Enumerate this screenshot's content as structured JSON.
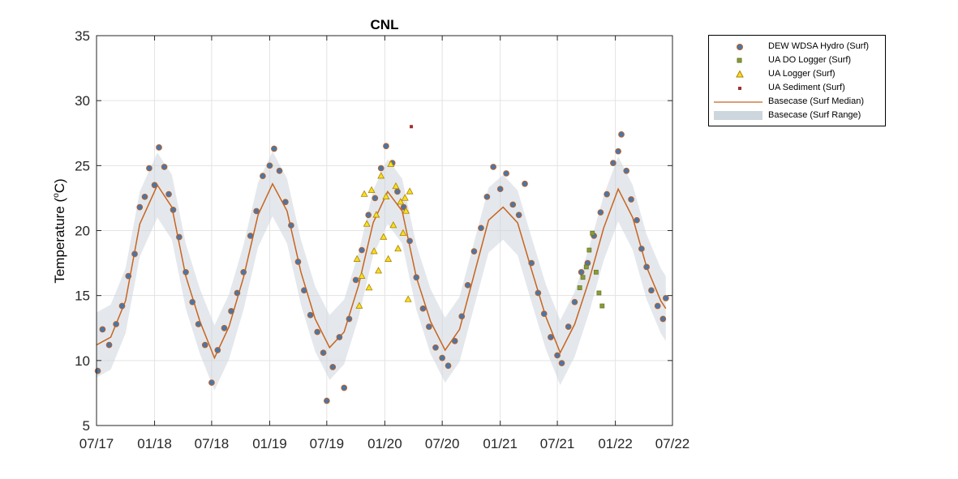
{
  "chart_data": {
    "type": "scatter",
    "title": "CNL",
    "xlabel": "",
    "ylabel": "Temperature (°C)",
    "ylabel_main": "Temperature (",
    "ylabel_sup": "o",
    "ylabel_unit": "C)",
    "ylim": [
      5,
      35
    ],
    "yticks": [
      5,
      10,
      15,
      20,
      25,
      30,
      35
    ],
    "xlim": [
      "2017-07-01",
      "2022-07-01"
    ],
    "xticks": [
      {
        "date": "2017-07-01",
        "label": "07/17"
      },
      {
        "date": "2018-01-01",
        "label": "01/18"
      },
      {
        "date": "2018-07-01",
        "label": "07/18"
      },
      {
        "date": "2019-01-01",
        "label": "01/19"
      },
      {
        "date": "2019-07-01",
        "label": "07/19"
      },
      {
        "date": "2020-01-01",
        "label": "01/20"
      },
      {
        "date": "2020-07-01",
        "label": "07/20"
      },
      {
        "date": "2021-01-01",
        "label": "01/21"
      },
      {
        "date": "2021-07-01",
        "label": "07/21"
      },
      {
        "date": "2022-01-01",
        "label": "01/22"
      },
      {
        "date": "2022-07-01",
        "label": "07/22"
      }
    ],
    "grid": true,
    "legend_position": "outside-top-right",
    "series": [
      {
        "name": "DEW WDSA Hydro (Surf)",
        "marker": "circle",
        "color": "#4a76a8",
        "edge": "#c06020",
        "points": [
          [
            "2017-07-05",
            9.2
          ],
          [
            "2017-07-20",
            12.4
          ],
          [
            "2017-08-10",
            11.2
          ],
          [
            "2017-09-01",
            12.8
          ],
          [
            "2017-09-20",
            14.2
          ],
          [
            "2017-10-10",
            16.5
          ],
          [
            "2017-10-30",
            18.2
          ],
          [
            "2017-11-15",
            21.8
          ],
          [
            "2017-12-01",
            22.6
          ],
          [
            "2017-12-15",
            24.8
          ],
          [
            "2018-01-01",
            23.5
          ],
          [
            "2018-01-15",
            26.4
          ],
          [
            "2018-02-01",
            24.9
          ],
          [
            "2018-02-15",
            22.8
          ],
          [
            "2018-03-01",
            21.6
          ],
          [
            "2018-03-20",
            19.5
          ],
          [
            "2018-04-10",
            16.8
          ],
          [
            "2018-05-01",
            14.5
          ],
          [
            "2018-05-20",
            12.8
          ],
          [
            "2018-06-10",
            11.2
          ],
          [
            "2018-07-01",
            8.3
          ],
          [
            "2018-07-20",
            10.8
          ],
          [
            "2018-08-10",
            12.5
          ],
          [
            "2018-09-01",
            13.8
          ],
          [
            "2018-09-20",
            15.2
          ],
          [
            "2018-10-10",
            16.8
          ],
          [
            "2018-11-01",
            19.6
          ],
          [
            "2018-11-20",
            21.5
          ],
          [
            "2018-12-10",
            24.2
          ],
          [
            "2019-01-01",
            25.0
          ],
          [
            "2019-01-15",
            26.3
          ],
          [
            "2019-02-01",
            24.6
          ],
          [
            "2019-02-20",
            22.2
          ],
          [
            "2019-03-10",
            20.4
          ],
          [
            "2019-04-01",
            17.6
          ],
          [
            "2019-04-20",
            15.4
          ],
          [
            "2019-05-10",
            13.5
          ],
          [
            "2019-06-01",
            12.2
          ],
          [
            "2019-06-20",
            10.6
          ],
          [
            "2019-07-01",
            6.9
          ],
          [
            "2019-07-20",
            9.5
          ],
          [
            "2019-08-10",
            11.8
          ],
          [
            "2019-08-25",
            7.9
          ],
          [
            "2019-09-10",
            13.2
          ],
          [
            "2019-10-01",
            16.2
          ],
          [
            "2019-10-20",
            18.5
          ],
          [
            "2019-11-10",
            21.2
          ],
          [
            "2019-12-01",
            22.5
          ],
          [
            "2019-12-20",
            24.8
          ],
          [
            "2020-01-05",
            26.5
          ],
          [
            "2020-01-25",
            25.2
          ],
          [
            "2020-02-10",
            23.0
          ],
          [
            "2020-03-01",
            21.8
          ],
          [
            "2020-03-20",
            19.2
          ],
          [
            "2020-04-10",
            16.4
          ],
          [
            "2020-05-01",
            14.0
          ],
          [
            "2020-05-20",
            12.6
          ],
          [
            "2020-06-10",
            11.0
          ],
          [
            "2020-07-01",
            10.2
          ],
          [
            "2020-07-20",
            9.6
          ],
          [
            "2020-08-10",
            11.5
          ],
          [
            "2020-09-01",
            13.4
          ],
          [
            "2020-09-20",
            15.8
          ],
          [
            "2020-10-10",
            18.4
          ],
          [
            "2020-11-01",
            20.2
          ],
          [
            "2020-11-20",
            22.6
          ],
          [
            "2020-12-10",
            24.9
          ],
          [
            "2021-01-01",
            23.2
          ],
          [
            "2021-01-20",
            24.4
          ],
          [
            "2021-02-10",
            22.0
          ],
          [
            "2021-03-01",
            21.2
          ],
          [
            "2021-03-20",
            23.6
          ],
          [
            "2021-04-10",
            17.5
          ],
          [
            "2021-05-01",
            15.2
          ],
          [
            "2021-05-20",
            13.6
          ],
          [
            "2021-06-10",
            11.8
          ],
          [
            "2021-07-01",
            10.4
          ],
          [
            "2021-07-15",
            9.8
          ],
          [
            "2021-08-05",
            12.6
          ],
          [
            "2021-08-25",
            14.5
          ],
          [
            "2021-09-15",
            16.8
          ],
          [
            "2021-10-05",
            17.5
          ],
          [
            "2021-10-25",
            19.6
          ],
          [
            "2021-11-15",
            21.4
          ],
          [
            "2021-12-05",
            22.8
          ],
          [
            "2021-12-25",
            25.2
          ],
          [
            "2022-01-10",
            26.1
          ],
          [
            "2022-01-20",
            27.4
          ],
          [
            "2022-02-05",
            24.6
          ],
          [
            "2022-02-20",
            22.4
          ],
          [
            "2022-03-10",
            20.8
          ],
          [
            "2022-03-25",
            18.6
          ],
          [
            "2022-04-10",
            17.2
          ],
          [
            "2022-04-25",
            15.4
          ],
          [
            "2022-05-15",
            14.2
          ],
          [
            "2022-06-01",
            13.2
          ],
          [
            "2022-06-10",
            14.8
          ]
        ]
      },
      {
        "name": "UA DO Logger (Surf)",
        "marker": "square",
        "color": "#8a9a3a",
        "edge": "#6a7a28",
        "points": [
          [
            "2021-09-10",
            15.6
          ],
          [
            "2021-09-20",
            16.4
          ],
          [
            "2021-10-01",
            17.2
          ],
          [
            "2021-10-10",
            18.5
          ],
          [
            "2021-10-20",
            19.8
          ],
          [
            "2021-11-01",
            16.8
          ],
          [
            "2021-11-10",
            15.2
          ],
          [
            "2021-11-20",
            14.2
          ]
        ]
      },
      {
        "name": "UA Logger (Surf)",
        "marker": "triangle",
        "color": "#f5e020",
        "edge": "#b08000",
        "points": [
          [
            "2019-10-05",
            17.8
          ],
          [
            "2019-10-12",
            14.2
          ],
          [
            "2019-10-20",
            16.5
          ],
          [
            "2019-10-28",
            22.8
          ],
          [
            "2019-11-05",
            20.5
          ],
          [
            "2019-11-12",
            15.6
          ],
          [
            "2019-11-20",
            23.1
          ],
          [
            "2019-11-28",
            18.4
          ],
          [
            "2019-12-05",
            21.2
          ],
          [
            "2019-12-12",
            16.9
          ],
          [
            "2019-12-20",
            24.2
          ],
          [
            "2019-12-28",
            19.5
          ],
          [
            "2020-01-05",
            22.6
          ],
          [
            "2020-01-12",
            17.8
          ],
          [
            "2020-01-20",
            25.1
          ],
          [
            "2020-01-28",
            20.4
          ],
          [
            "2020-02-05",
            23.4
          ],
          [
            "2020-02-12",
            18.6
          ],
          [
            "2020-02-20",
            22.2
          ],
          [
            "2020-02-28",
            19.8
          ],
          [
            "2020-03-08",
            21.5
          ],
          [
            "2020-03-15",
            14.7
          ],
          [
            "2020-03-20",
            23.0
          ],
          [
            "2020-03-05",
            22.5
          ]
        ]
      },
      {
        "name": "UA Sediment (Surf)",
        "marker": "small-square",
        "color": "#a03030",
        "edge": "#a03030",
        "points": [
          [
            "2020-03-25",
            28.0
          ]
        ]
      }
    ],
    "basecase_median": {
      "name": "Basecase (Surf Median)",
      "color": "#c86420",
      "points": [
        [
          "2017-07-01",
          11.2
        ],
        [
          "2017-08-15",
          11.8
        ],
        [
          "2017-10-01",
          14.6
        ],
        [
          "2017-11-15",
          20.5
        ],
        [
          "2018-01-10",
          23.5
        ],
        [
          "2018-02-25",
          21.8
        ],
        [
          "2018-04-10",
          16.5
        ],
        [
          "2018-05-25",
          13.0
        ],
        [
          "2018-07-10",
          10.2
        ],
        [
          "2018-08-25",
          12.6
        ],
        [
          "2018-10-10",
          16.4
        ],
        [
          "2018-11-25",
          21.2
        ],
        [
          "2019-01-10",
          23.6
        ],
        [
          "2019-02-25",
          21.5
        ],
        [
          "2019-04-10",
          16.8
        ],
        [
          "2019-05-25",
          13.2
        ],
        [
          "2019-07-10",
          11.0
        ],
        [
          "2019-08-25",
          12.2
        ],
        [
          "2019-10-10",
          15.8
        ],
        [
          "2019-11-25",
          20.6
        ],
        [
          "2020-01-10",
          23.0
        ],
        [
          "2020-02-25",
          21.5
        ],
        [
          "2020-04-10",
          16.4
        ],
        [
          "2020-05-25",
          13.0
        ],
        [
          "2020-07-10",
          10.8
        ],
        [
          "2020-08-25",
          12.4
        ],
        [
          "2020-10-10",
          16.6
        ],
        [
          "2020-11-25",
          20.8
        ],
        [
          "2021-01-10",
          21.8
        ],
        [
          "2021-02-25",
          20.6
        ],
        [
          "2021-04-10",
          17.0
        ],
        [
          "2021-05-25",
          13.4
        ],
        [
          "2021-07-10",
          10.6
        ],
        [
          "2021-08-25",
          12.8
        ],
        [
          "2021-10-10",
          16.2
        ],
        [
          "2021-11-25",
          20.2
        ],
        [
          "2022-01-10",
          23.2
        ],
        [
          "2022-02-25",
          21.0
        ],
        [
          "2022-04-10",
          17.2
        ],
        [
          "2022-05-25",
          14.6
        ],
        [
          "2022-06-10",
          14.0
        ]
      ]
    },
    "basecase_range": {
      "name": "Basecase (Surf Range)",
      "color": "#cdd6dc",
      "spread": 2.5
    },
    "legend": [
      {
        "label": "DEW WDSA Hydro (Surf)",
        "symbol": "circle",
        "color": "#4a76a8",
        "edge": "#c06020"
      },
      {
        "label": "UA DO Logger (Surf)",
        "symbol": "square",
        "color": "#8a9a3a",
        "edge": "#6a7a28"
      },
      {
        "label": "UA Logger (Surf)",
        "symbol": "triangle",
        "color": "#f5e020",
        "edge": "#b08000"
      },
      {
        "label": "UA Sediment (Surf)",
        "symbol": "small-square",
        "color": "#a03030",
        "edge": "#a03030"
      },
      {
        "label": "Basecase (Surf Median)",
        "symbol": "line",
        "color": "#c86420",
        "edge": "#c86420"
      },
      {
        "label": "Basecase (Surf Range)",
        "symbol": "band",
        "color": "#cdd6dc",
        "edge": "#cdd6dc"
      }
    ]
  }
}
